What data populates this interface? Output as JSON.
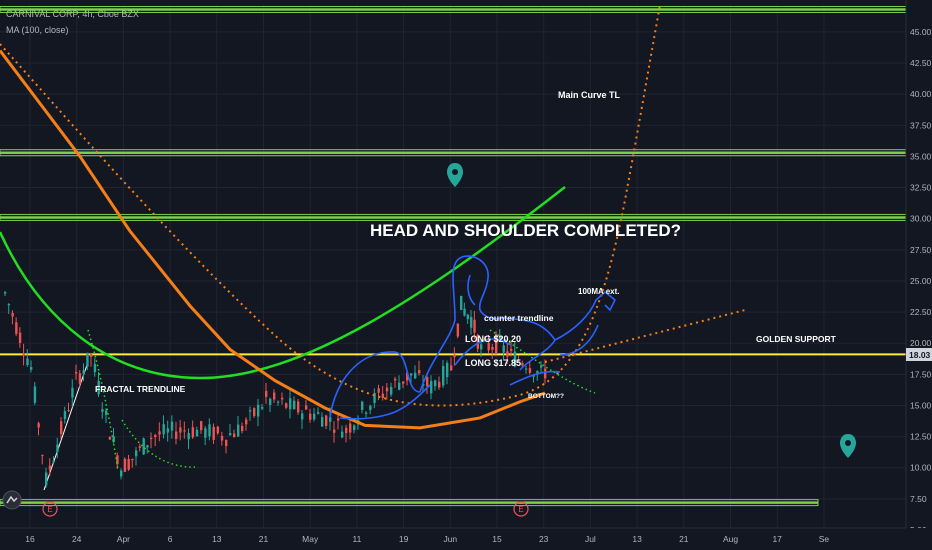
{
  "header": {
    "symbol_line": "CARNIVAL CORP, 4h, Cboe BZX",
    "indicator_line": "MA (100, close)"
  },
  "colors": {
    "background": "#131722",
    "grid": "#1f2431",
    "candle_up": "#26a69a",
    "candle_down": "#ef5350",
    "ma_line": "#f57f17",
    "green_curve": "#22dd22",
    "horizontal_levels": "#7ccf4a",
    "golden_support": "#ffeb3b",
    "drawing_blue": "#2962ff",
    "marker_teal": "#26a69a"
  },
  "chart_data": {
    "type": "line",
    "title": "",
    "xlabel": "",
    "ylabel": "",
    "ylim": [
      5,
      47
    ],
    "y_ticks": [
      "45.00",
      "42.50",
      "40.00",
      "37.50",
      "35.00",
      "32.50",
      "30.00",
      "27.50",
      "25.00",
      "22.50",
      "20.00",
      "17.50",
      "15.00",
      "12.50",
      "10.00",
      "7.50",
      "5.00"
    ],
    "x_ticks": [
      "16",
      "24",
      "Apr",
      "6",
      "13",
      "21",
      "May",
      "11",
      "19",
      "Jun",
      "15",
      "23",
      "Jul",
      "13",
      "21",
      "Aug",
      "17",
      "Se"
    ],
    "current_price": "18.03",
    "horizontal_levels": [
      46.8,
      35.3,
      30.1,
      7.2
    ],
    "golden_support_level": 19.1,
    "ma_series": {
      "name": "MA (100, close)",
      "points": [
        [
          "16",
          43.5
        ],
        [
          "24",
          35
        ],
        [
          "Apr",
          29
        ],
        [
          "13",
          23
        ],
        [
          "21",
          19.5
        ],
        [
          "May",
          17
        ],
        [
          "11",
          14.8
        ],
        [
          "19",
          13.4
        ],
        [
          "Jun",
          13.2
        ],
        [
          "15",
          14
        ],
        [
          "23",
          15.3
        ],
        [
          "Jul",
          16
        ]
      ]
    },
    "annotations": [
      "HEAD AND SHOULDER COMPLETED?",
      "Main Curve TL",
      "FRACTAL TRENDLINE",
      "counter trendline",
      "LONG $20.20",
      "LONG $17.85",
      "BOTTOM??",
      "100MA ext.",
      "GOLDEN SUPPORT"
    ],
    "event_markers": [
      "E",
      "E"
    ]
  }
}
